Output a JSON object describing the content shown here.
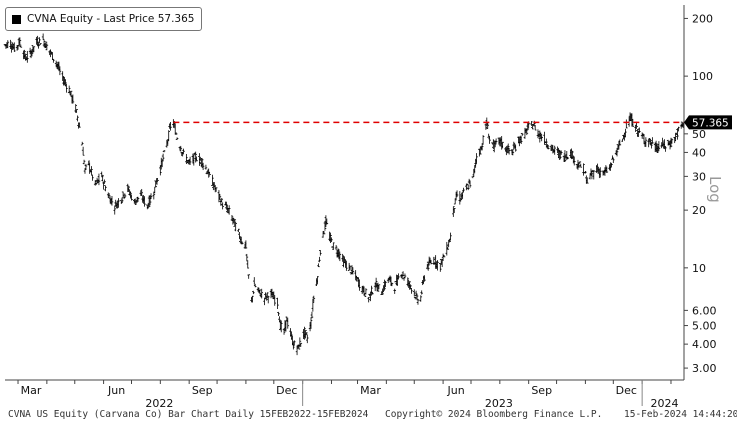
{
  "legend": {
    "label": "CVNA Equity - Last Price 57.365"
  },
  "footer": {
    "left": "CVNA US Equity (Carvana Co) Bar Chart  Daily 15FEB2022-15FEB2024",
    "center": "Copyright© 2024 Bloomberg Finance L.P.",
    "right": "15-Feb-2024 14:44:20"
  },
  "colors": {
    "series": "#000000",
    "reference_line": "#e00000",
    "last_price_box": "#000000",
    "background": "#ffffff"
  },
  "chart_data": {
    "type": "bar",
    "subtype": "ohlc-daily",
    "series_name": "CVNA Equity",
    "x_range": [
      "2022-02-15",
      "2024-02-15"
    ],
    "y_scale": "log",
    "ylim": [
      2.6,
      235
    ],
    "ylabel": "Log",
    "y_ticks": [
      200,
      100,
      50,
      40,
      30,
      20,
      10,
      6.0,
      5.0,
      4.0,
      3.0
    ],
    "y_tick_labels": [
      "200",
      "100",
      "50",
      "40",
      "30",
      "20",
      "10",
      "6.00",
      "5.00",
      "4.00",
      "3.00"
    ],
    "x_month_labels": [
      {
        "date": "2022-03-15",
        "label": "Mar"
      },
      {
        "date": "2022-06-15",
        "label": "Jun"
      },
      {
        "date": "2022-09-15",
        "label": "Sep"
      },
      {
        "date": "2022-12-15",
        "label": "Dec"
      },
      {
        "date": "2023-03-15",
        "label": "Mar"
      },
      {
        "date": "2023-06-15",
        "label": "Jun"
      },
      {
        "date": "2023-09-15",
        "label": "Sep"
      },
      {
        "date": "2023-12-15",
        "label": "Dec"
      }
    ],
    "x_year_labels": [
      {
        "date": "2022-07-31",
        "label": "2022"
      },
      {
        "date": "2023-07-31",
        "label": "2023"
      },
      {
        "date": "2024-01-25",
        "label": "2024"
      }
    ],
    "year_boundaries": [
      "2023-01-01",
      "2024-01-01"
    ],
    "last_price": 57.365,
    "last_price_label": "57.365",
    "reference_line": {
      "value": 57.365,
      "start": "2022-08-15",
      "style": "dashed"
    },
    "grid": false,
    "legend_position": "top-left",
    "path": [
      [
        "2022-02-15",
        145
      ],
      [
        "2022-02-20",
        150
      ],
      [
        "2022-02-26",
        138
      ],
      [
        "2022-03-03",
        152
      ],
      [
        "2022-03-09",
        124
      ],
      [
        "2022-03-14",
        130
      ],
      [
        "2022-03-21",
        150
      ],
      [
        "2022-03-28",
        155
      ],
      [
        "2022-04-04",
        135
      ],
      [
        "2022-04-11",
        118
      ],
      [
        "2022-04-18",
        98
      ],
      [
        "2022-04-25",
        85
      ],
      [
        "2022-05-02",
        68
      ],
      [
        "2022-05-05",
        58
      ],
      [
        "2022-05-09",
        45
      ],
      [
        "2022-05-12",
        32
      ],
      [
        "2022-05-16",
        35
      ],
      [
        "2022-05-23",
        27
      ],
      [
        "2022-05-30",
        30
      ],
      [
        "2022-06-06",
        24
      ],
      [
        "2022-06-13",
        21
      ],
      [
        "2022-06-20",
        23
      ],
      [
        "2022-06-27",
        26
      ],
      [
        "2022-07-04",
        22
      ],
      [
        "2022-07-11",
        24
      ],
      [
        "2022-07-18",
        21
      ],
      [
        "2022-07-25",
        25
      ],
      [
        "2022-08-01",
        33
      ],
      [
        "2022-08-08",
        44
      ],
      [
        "2022-08-12",
        55
      ],
      [
        "2022-08-15",
        57
      ],
      [
        "2022-08-19",
        48
      ],
      [
        "2022-08-25",
        40
      ],
      [
        "2022-09-01",
        35
      ],
      [
        "2022-09-08",
        38
      ],
      [
        "2022-09-15",
        36
      ],
      [
        "2022-09-22",
        31
      ],
      [
        "2022-09-29",
        26
      ],
      [
        "2022-10-06",
        22
      ],
      [
        "2022-10-13",
        20
      ],
      [
        "2022-10-20",
        17
      ],
      [
        "2022-10-27",
        14
      ],
      [
        "2022-11-01",
        13
      ],
      [
        "2022-11-03",
        10
      ],
      [
        "2022-11-07",
        6.6
      ],
      [
        "2022-11-10",
        8.2
      ],
      [
        "2022-11-14",
        7.6
      ],
      [
        "2022-11-21",
        7.0
      ],
      [
        "2022-11-28",
        7.3
      ],
      [
        "2022-12-05",
        6.6
      ],
      [
        "2022-12-08",
        5.0
      ],
      [
        "2022-12-12",
        4.6
      ],
      [
        "2022-12-15",
        5.4
      ],
      [
        "2022-12-19",
        4.5
      ],
      [
        "2022-12-22",
        4.0
      ],
      [
        "2022-12-27",
        3.8
      ],
      [
        "2023-01-03",
        4.6
      ],
      [
        "2023-01-06",
        4.3
      ],
      [
        "2023-01-10",
        5.2
      ],
      [
        "2023-01-13",
        7.0
      ],
      [
        "2023-01-17",
        9.0
      ],
      [
        "2023-01-20",
        12.5
      ],
      [
        "2023-01-26",
        17.5
      ],
      [
        "2023-01-30",
        14.5
      ],
      [
        "2023-02-03",
        13.0
      ],
      [
        "2023-02-09",
        12.0
      ],
      [
        "2023-02-14",
        10.8
      ],
      [
        "2023-02-20",
        10.0
      ],
      [
        "2023-02-27",
        9.0
      ],
      [
        "2023-03-06",
        7.8
      ],
      [
        "2023-03-13",
        7.0
      ],
      [
        "2023-03-20",
        8.2
      ],
      [
        "2023-03-27",
        7.5
      ],
      [
        "2023-04-03",
        8.8
      ],
      [
        "2023-04-10",
        8.0
      ],
      [
        "2023-04-17",
        9.5
      ],
      [
        "2023-04-24",
        8.5
      ],
      [
        "2023-05-01",
        7.5
      ],
      [
        "2023-05-04",
        6.8
      ],
      [
        "2023-05-08",
        7.0
      ],
      [
        "2023-05-11",
        8.6
      ],
      [
        "2023-05-15",
        10.2
      ],
      [
        "2023-05-22",
        11.0
      ],
      [
        "2023-05-29",
        10.3
      ],
      [
        "2023-06-05",
        12.5
      ],
      [
        "2023-06-09",
        14.5
      ],
      [
        "2023-06-12",
        20.0
      ],
      [
        "2023-06-16",
        24.0
      ],
      [
        "2023-06-20",
        23.0
      ],
      [
        "2023-06-26",
        26.0
      ],
      [
        "2023-07-03",
        29.0
      ],
      [
        "2023-07-07",
        38.0
      ],
      [
        "2023-07-12",
        42.0
      ],
      [
        "2023-07-18",
        57.0
      ],
      [
        "2023-07-21",
        47.0
      ],
      [
        "2023-07-26",
        43.0
      ],
      [
        "2023-08-01",
        46.0
      ],
      [
        "2023-08-07",
        42.0
      ],
      [
        "2023-08-14",
        40.0
      ],
      [
        "2023-08-21",
        46.0
      ],
      [
        "2023-08-28",
        50.0
      ],
      [
        "2023-09-01",
        54.0
      ],
      [
        "2023-09-06",
        56.0
      ],
      [
        "2023-09-12",
        50.0
      ],
      [
        "2023-09-18",
        47.0
      ],
      [
        "2023-09-25",
        42.0
      ],
      [
        "2023-10-02",
        40.0
      ],
      [
        "2023-10-09",
        38.0
      ],
      [
        "2023-10-16",
        40.0
      ],
      [
        "2023-10-23",
        35.0
      ],
      [
        "2023-10-30",
        33.0
      ],
      [
        "2023-11-03",
        28.0
      ],
      [
        "2023-11-06",
        30.0
      ],
      [
        "2023-11-13",
        33.0
      ],
      [
        "2023-11-20",
        31.0
      ],
      [
        "2023-11-27",
        33.0
      ],
      [
        "2023-12-04",
        40.0
      ],
      [
        "2023-12-11",
        47.0
      ],
      [
        "2023-12-15",
        55.0
      ],
      [
        "2023-12-20",
        60.0
      ],
      [
        "2023-12-26",
        53.0
      ],
      [
        "2024-01-03",
        47.0
      ],
      [
        "2024-01-10",
        45.0
      ],
      [
        "2024-01-17",
        42.0
      ],
      [
        "2024-01-22",
        44.0
      ],
      [
        "2024-01-26",
        43.0
      ],
      [
        "2024-02-01",
        45.0
      ],
      [
        "2024-02-06",
        48.0
      ],
      [
        "2024-02-09",
        52.0
      ],
      [
        "2024-02-13",
        55.0
      ],
      [
        "2024-02-15",
        57.365
      ]
    ]
  }
}
